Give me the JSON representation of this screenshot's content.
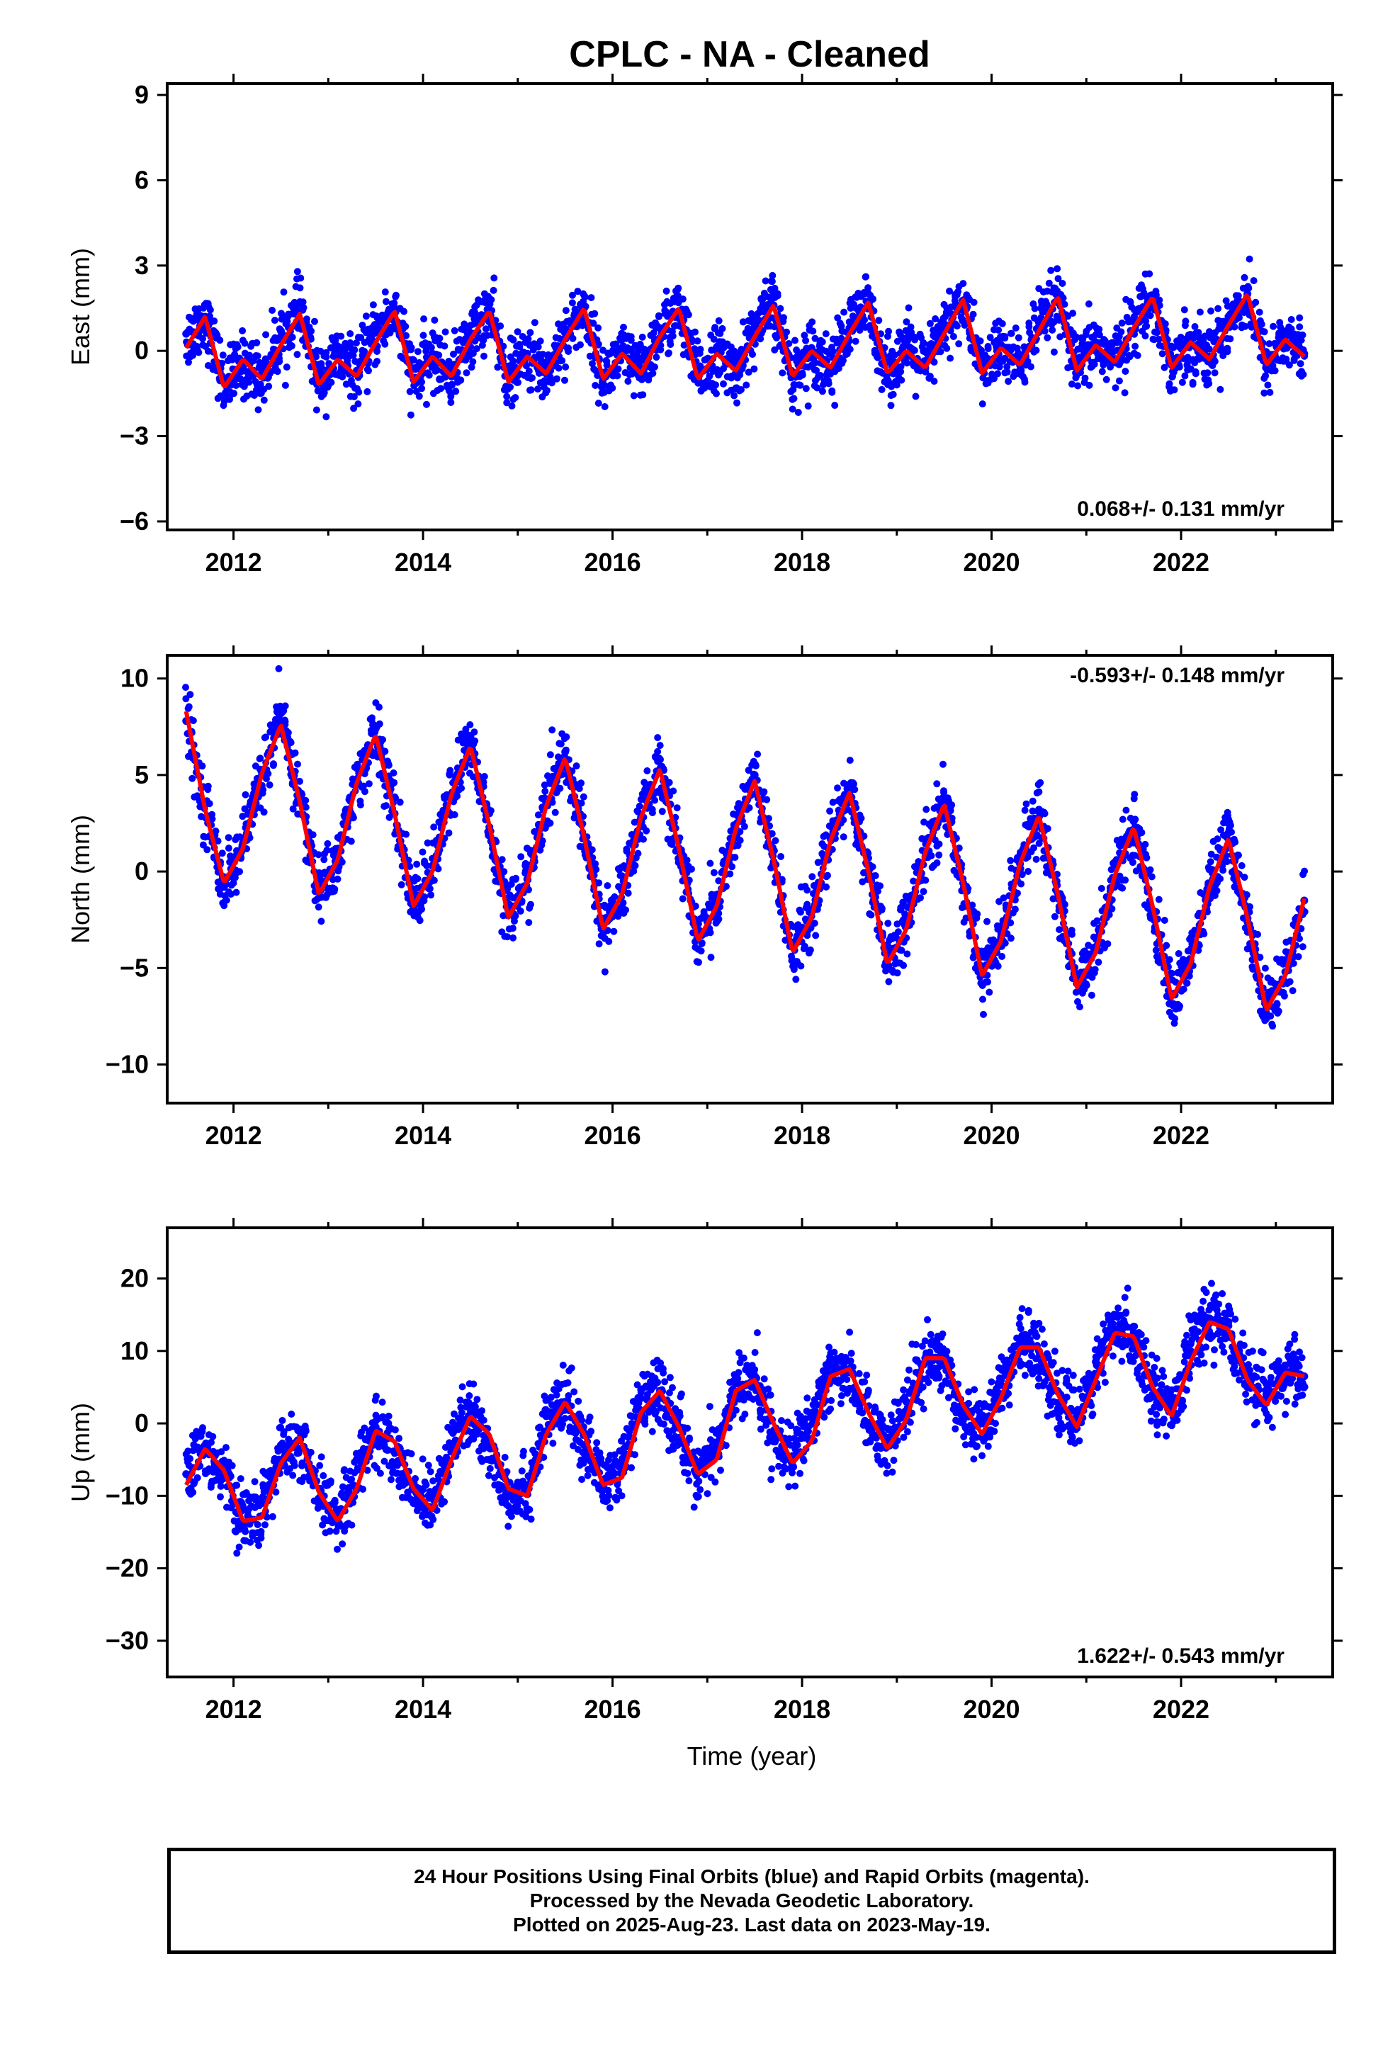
{
  "figure_title": "CPLC  - NA - Cleaned",
  "x_axis_label": "Time (year)",
  "footer": {
    "line1": "24 Hour Positions Using Final Orbits (blue) and Rapid Orbits (magenta).",
    "line2": "Processed by the Nevada Geodetic Laboratory.",
    "line3": "Plotted on 2025-Aug-23. Last data on 2023-May-19."
  },
  "colors": {
    "points": "#0000ff",
    "fit": "#ff0000",
    "frame": "#000000"
  },
  "chart_data": [
    {
      "type": "scatter",
      "title": "CPLC  - NA - Cleaned",
      "xlabel": "",
      "ylabel": "East (mm)",
      "xlim": [
        2011.3,
        2023.6
      ],
      "ylim": [
        -6.3,
        9.4
      ],
      "xticks": [
        2012,
        2014,
        2016,
        2018,
        2020,
        2022
      ],
      "xtick_labels": [
        "2012",
        "2014",
        "2016",
        "2018",
        "2020",
        "2022"
      ],
      "yticks": [
        -6,
        -3,
        0,
        3,
        6,
        9
      ],
      "ytick_labels": [
        "−6",
        "−3",
        "0",
        "3",
        "6",
        "9"
      ],
      "rate_label": "0.068+/- 0.131 mm/yr",
      "rate_label_position": "bottom-right",
      "series": [
        {
          "kind": "points",
          "x": [
            2011.5,
            2011.7,
            2011.9,
            2012.1,
            2012.3,
            2012.5,
            2012.7,
            2012.9,
            2013.1,
            2013.3,
            2013.5,
            2013.7,
            2013.9,
            2014.1,
            2014.3,
            2014.5,
            2014.7,
            2014.9,
            2015.1,
            2015.3,
            2015.5,
            2015.7,
            2015.9,
            2016.1,
            2016.3,
            2016.5,
            2016.7,
            2016.9,
            2017.1,
            2017.3,
            2017.5,
            2017.7,
            2017.9,
            2018.1,
            2018.3,
            2018.5,
            2018.7,
            2018.9,
            2019.1,
            2019.3,
            2019.5,
            2019.7,
            2019.9,
            2020.1,
            2020.3,
            2020.5,
            2020.7,
            2020.9,
            2021.1,
            2021.3,
            2021.5,
            2021.7,
            2021.9,
            2022.1,
            2022.3,
            2022.5,
            2022.7,
            2022.9,
            2023.1,
            2023.3
          ],
          "y": [
            0.6,
            1.2,
            -1.1,
            -0.6,
            -0.8,
            0.7,
            1.5,
            -0.9,
            -0.2,
            -0.7,
            0.8,
            1.5,
            -1.0,
            -0.1,
            -0.9,
            0.6,
            1.4,
            -0.8,
            -0.1,
            -0.8,
            0.7,
            1.5,
            -1.0,
            -0.1,
            -0.9,
            0.8,
            1.4,
            -0.9,
            0.0,
            -0.8,
            0.9,
            1.6,
            -0.9,
            0.1,
            -0.6,
            0.8,
            1.6,
            -0.8,
            0.2,
            -0.6,
            0.9,
            1.7,
            -0.7,
            0.2,
            -0.5,
            1.0,
            1.7,
            -0.6,
            0.3,
            -0.3,
            1.1,
            1.9,
            -0.5,
            0.4,
            -0.2,
            1.2,
            2.0,
            -0.5,
            0.5,
            -0.1
          ]
        },
        {
          "kind": "fit",
          "x": [
            2011.5,
            2011.7,
            2011.9,
            2012.1,
            2012.3,
            2012.5,
            2012.7,
            2012.9,
            2013.1,
            2013.3,
            2013.5,
            2013.7,
            2013.9,
            2014.1,
            2014.3,
            2014.5,
            2014.7,
            2014.9,
            2015.1,
            2015.3,
            2015.5,
            2015.7,
            2015.9,
            2016.1,
            2016.3,
            2016.5,
            2016.7,
            2016.9,
            2017.1,
            2017.3,
            2017.5,
            2017.7,
            2017.9,
            2018.1,
            2018.3,
            2018.5,
            2018.7,
            2018.9,
            2019.1,
            2019.3,
            2019.5,
            2019.7,
            2019.9,
            2020.1,
            2020.3,
            2020.5,
            2020.7,
            2020.9,
            2021.1,
            2021.3,
            2021.5,
            2021.7,
            2021.9,
            2022.1,
            2022.3,
            2022.5,
            2022.7,
            2022.9,
            2023.1,
            2023.3
          ],
          "y": [
            0.1,
            1.2,
            -1.3,
            -0.3,
            -1.0,
            0.2,
            1.3,
            -1.2,
            -0.3,
            -0.9,
            0.3,
            1.4,
            -1.1,
            -0.2,
            -0.9,
            0.4,
            1.4,
            -1.1,
            -0.2,
            -0.8,
            0.4,
            1.5,
            -1.0,
            -0.1,
            -0.8,
            0.5,
            1.5,
            -1.0,
            -0.1,
            -0.7,
            0.5,
            1.6,
            -0.9,
            0.0,
            -0.6,
            0.6,
            1.7,
            -0.8,
            0.0,
            -0.6,
            0.6,
            1.8,
            -0.8,
            0.1,
            -0.5,
            0.7,
            1.9,
            -0.7,
            0.2,
            -0.4,
            0.8,
            1.9,
            -0.6,
            0.3,
            -0.3,
            0.9,
            2.0,
            -0.5,
            0.4,
            -0.2
          ]
        }
      ]
    },
    {
      "type": "scatter",
      "title": "",
      "xlabel": "",
      "ylabel": "North (mm)",
      "xlim": [
        2011.3,
        2023.6
      ],
      "ylim": [
        -12.0,
        11.2
      ],
      "xticks": [
        2012,
        2014,
        2016,
        2018,
        2020,
        2022
      ],
      "xtick_labels": [
        "2012",
        "2014",
        "2016",
        "2018",
        "2020",
        "2022"
      ],
      "yticks": [
        -10,
        -5,
        0,
        5,
        10
      ],
      "ytick_labels": [
        "−10",
        "−5",
        "0",
        "5",
        "10"
      ],
      "rate_label": "-0.593+/- 0.148 mm/yr",
      "rate_label_position": "top-right",
      "series": [
        {
          "kind": "points",
          "x": [
            2011.5,
            2011.7,
            2011.9,
            2012.1,
            2012.3,
            2012.5,
            2012.7,
            2012.9,
            2013.1,
            2013.3,
            2013.5,
            2013.7,
            2013.9,
            2014.1,
            2014.3,
            2014.5,
            2014.7,
            2014.9,
            2015.1,
            2015.3,
            2015.5,
            2015.7,
            2015.9,
            2016.1,
            2016.3,
            2016.5,
            2016.7,
            2016.9,
            2017.1,
            2017.3,
            2017.5,
            2017.7,
            2017.9,
            2018.1,
            2018.3,
            2018.5,
            2018.7,
            2018.9,
            2019.1,
            2019.3,
            2019.5,
            2019.7,
            2019.9,
            2020.1,
            2020.3,
            2020.5,
            2020.7,
            2020.9,
            2021.1,
            2021.3,
            2021.5,
            2021.7,
            2021.9,
            2022.1,
            2022.3,
            2022.5,
            2022.7,
            2022.9,
            2023.1,
            2023.3
          ],
          "y": [
            7.8,
            3.5,
            -0.8,
            1.5,
            5.0,
            8.2,
            4.0,
            -0.9,
            0.8,
            4.5,
            7.4,
            3.0,
            -1.5,
            0.3,
            4.0,
            7.0,
            2.3,
            -2.0,
            -0.4,
            3.5,
            6.2,
            1.8,
            -2.7,
            -1.0,
            2.8,
            5.8,
            1.2,
            -3.3,
            -1.5,
            2.2,
            5.0,
            0.5,
            -3.9,
            -2.1,
            1.7,
            4.5,
            0.0,
            -4.5,
            -2.8,
            1.0,
            3.8,
            -0.6,
            -5.2,
            -3.4,
            0.4,
            3.2,
            -1.4,
            -5.8,
            -3.9,
            -0.3,
            2.6,
            -2.0,
            -6.4,
            -4.6,
            -0.8,
            2.0,
            -2.6,
            -7.0,
            -5.2,
            -1.5
          ]
        },
        {
          "kind": "fit",
          "x": [
            2011.5,
            2011.7,
            2011.9,
            2012.1,
            2012.3,
            2012.5,
            2012.7,
            2012.9,
            2013.1,
            2013.3,
            2013.5,
            2013.7,
            2013.9,
            2014.1,
            2014.3,
            2014.5,
            2014.7,
            2014.9,
            2015.1,
            2015.3,
            2015.5,
            2015.7,
            2015.9,
            2016.1,
            2016.3,
            2016.5,
            2016.7,
            2016.9,
            2017.1,
            2017.3,
            2017.5,
            2017.7,
            2017.9,
            2018.1,
            2018.3,
            2018.5,
            2018.7,
            2018.9,
            2019.1,
            2019.3,
            2019.5,
            2019.7,
            2019.9,
            2020.1,
            2020.3,
            2020.5,
            2020.7,
            2020.9,
            2021.1,
            2021.3,
            2021.5,
            2021.7,
            2021.9,
            2022.1,
            2022.3,
            2022.5,
            2022.7,
            2022.9,
            2023.1,
            2023.3
          ],
          "y": [
            8.3,
            3.2,
            -0.6,
            1.2,
            5.1,
            7.6,
            3.6,
            -1.2,
            0.6,
            4.6,
            7.1,
            3.0,
            -1.8,
            0.0,
            4.0,
            6.5,
            2.4,
            -2.4,
            -0.6,
            3.4,
            5.9,
            1.8,
            -3.0,
            -1.2,
            2.8,
            5.3,
            1.2,
            -3.6,
            -1.8,
            2.2,
            4.7,
            0.6,
            -4.2,
            -2.4,
            1.6,
            4.1,
            0.0,
            -4.8,
            -3.0,
            1.0,
            3.5,
            -0.6,
            -5.4,
            -3.6,
            0.4,
            2.9,
            -1.2,
            -6.0,
            -4.2,
            -0.2,
            2.3,
            -1.8,
            -6.6,
            -4.8,
            -0.8,
            1.7,
            -2.4,
            -7.2,
            -5.4,
            -1.4
          ]
        }
      ]
    },
    {
      "type": "scatter",
      "title": "",
      "xlabel": "Time (year)",
      "ylabel": "Up (mm)",
      "xlim": [
        2011.3,
        2023.6
      ],
      "ylim": [
        -35.0,
        27.0
      ],
      "xticks": [
        2012,
        2014,
        2016,
        2018,
        2020,
        2022
      ],
      "xtick_labels": [
        "2012",
        "2014",
        "2016",
        "2018",
        "2020",
        "2022"
      ],
      "yticks": [
        -30,
        -20,
        -10,
        0,
        10,
        20
      ],
      "ytick_labels": [
        "−30",
        "−20",
        "−10",
        "0",
        "10",
        "20"
      ],
      "rate_label": "1.622+/- 0.543 mm/yr",
      "rate_label_position": "bottom-right",
      "series": [
        {
          "kind": "points",
          "x": [
            2011.5,
            2011.7,
            2011.9,
            2012.1,
            2012.3,
            2012.5,
            2012.7,
            2012.9,
            2013.1,
            2013.3,
            2013.5,
            2013.7,
            2013.9,
            2014.1,
            2014.3,
            2014.5,
            2014.7,
            2014.9,
            2015.1,
            2015.3,
            2015.5,
            2015.7,
            2015.9,
            2016.1,
            2016.3,
            2016.5,
            2016.7,
            2016.9,
            2017.1,
            2017.3,
            2017.5,
            2017.7,
            2017.9,
            2018.1,
            2018.3,
            2018.5,
            2018.7,
            2018.9,
            2019.1,
            2019.3,
            2019.5,
            2019.7,
            2019.9,
            2020.1,
            2020.3,
            2020.5,
            2020.7,
            2020.9,
            2021.1,
            2021.3,
            2021.5,
            2021.7,
            2021.9,
            2022.1,
            2022.3,
            2022.5,
            2022.7,
            2022.9,
            2023.1,
            2023.3
          ],
          "y": [
            -7.0,
            -3.0,
            -7.5,
            -14.0,
            -11.0,
            -3.0,
            -3.5,
            -11.0,
            -12.5,
            -5.0,
            -0.5,
            -5.5,
            -11.0,
            -9.5,
            -1.0,
            1.0,
            -5.0,
            -10.0,
            -8.5,
            1.0,
            3.0,
            -3.0,
            -8.0,
            -5.5,
            3.5,
            4.5,
            -2.0,
            -6.0,
            -3.0,
            5.5,
            5.5,
            -2.5,
            -4.5,
            1.0,
            7.0,
            7.5,
            -0.5,
            -2.0,
            3.0,
            9.0,
            8.5,
            0.5,
            0.0,
            6.0,
            11.0,
            10.0,
            2.0,
            1.0,
            8.5,
            13.0,
            12.5,
            4.0,
            3.0,
            11.0,
            14.5,
            14.0,
            5.0,
            4.0,
            8.0,
            6.5
          ]
        },
        {
          "kind": "fit",
          "x": [
            2011.5,
            2011.7,
            2011.9,
            2012.1,
            2012.3,
            2012.5,
            2012.7,
            2012.9,
            2013.1,
            2013.3,
            2013.5,
            2013.7,
            2013.9,
            2014.1,
            2014.3,
            2014.5,
            2014.7,
            2014.9,
            2015.1,
            2015.3,
            2015.5,
            2015.7,
            2015.9,
            2016.1,
            2016.3,
            2016.5,
            2016.7,
            2016.9,
            2017.1,
            2017.3,
            2017.5,
            2017.7,
            2017.9,
            2018.1,
            2018.3,
            2018.5,
            2018.7,
            2018.9,
            2019.1,
            2019.3,
            2019.5,
            2019.7,
            2019.9,
            2020.1,
            2020.3,
            2020.5,
            2020.7,
            2020.9,
            2021.1,
            2021.3,
            2021.5,
            2021.7,
            2021.9,
            2022.1,
            2022.3,
            2022.5,
            2022.7,
            2022.9,
            2023.1,
            2023.3
          ],
          "y": [
            -8.5,
            -3.5,
            -6.5,
            -13.5,
            -13.0,
            -5.5,
            -2.0,
            -9.5,
            -13.5,
            -9.0,
            -1.0,
            -2.5,
            -9.0,
            -12.0,
            -5.0,
            1.0,
            -1.5,
            -9.0,
            -10.0,
            -1.5,
            3.0,
            -1.5,
            -8.5,
            -7.5,
            1.5,
            4.5,
            -0.5,
            -7.0,
            -5.0,
            4.5,
            6.0,
            0.0,
            -5.5,
            -2.5,
            6.5,
            7.5,
            1.5,
            -3.5,
            0.5,
            9.0,
            9.0,
            2.5,
            -1.5,
            3.5,
            10.5,
            10.5,
            4.0,
            -0.5,
            6.0,
            12.5,
            12.0,
            5.0,
            1.0,
            8.5,
            14.0,
            13.0,
            6.0,
            2.5,
            7.0,
            6.5
          ]
        }
      ]
    }
  ]
}
